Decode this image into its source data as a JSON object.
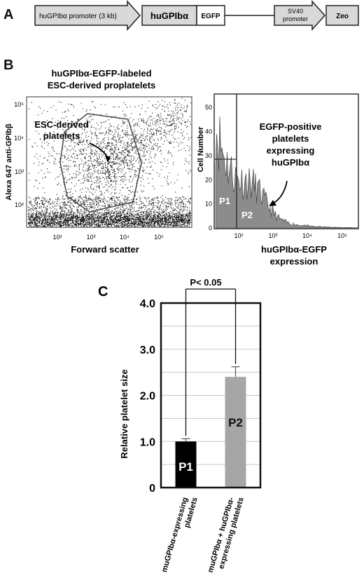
{
  "panels": {
    "a": {
      "letter": "A",
      "construct": {
        "promoter": "huGPIbα promoter (3 kb)",
        "gene": "huGPIbα",
        "tag": "EGFP",
        "sv40": [
          "SV40",
          "promoter"
        ],
        "zeo": "Zeo"
      }
    },
    "b": {
      "letter": "B",
      "title": [
        "huGPIbα-EGFP-labeled",
        "ESC-derived proplatelets"
      ],
      "scatter": {
        "ylabel": "Alexa 647 anti-GPIbβ",
        "xlabel": "Forward scatter",
        "gate_label": [
          "ESC-derived",
          "platelets"
        ],
        "xticks": [
          "10²",
          "10³",
          "10⁴",
          "10⁵"
        ],
        "yticks": [
          "10²",
          "10³",
          "10⁴",
          "10⁵"
        ]
      },
      "histogram": {
        "ylabel": "Cell Number",
        "xlabel": [
          "huGPIbα-EGFP",
          "expression"
        ],
        "annotation": [
          "EGFP-positive",
          "platelets",
          "expressing",
          "huGPIbα"
        ],
        "gates": [
          "P1",
          "P2"
        ],
        "xticks": [
          "10²",
          "10³",
          "10⁴",
          "10⁵"
        ],
        "yticks": [
          "0",
          "10",
          "20",
          "30",
          "40",
          "50"
        ]
      }
    },
    "c": {
      "letter": "C",
      "significance": "P< 0.05",
      "ylabel": "Relative  platelet size",
      "yticks": [
        "0",
        "1.0",
        "2.0",
        "3.0",
        "4.0"
      ],
      "category_labels": [
        [
          "muGPIbα-expressing",
          "platelets"
        ],
        [
          "muGPIbα + huGPIbα-",
          "expressing platelets"
        ]
      ]
    }
  },
  "chart_data": {
    "type": "bar",
    "categories": [
      "muGPIbα-expressing platelets",
      "muGPIbα + huGPIbα-expressing platelets"
    ],
    "values": [
      1.0,
      2.4
    ],
    "errors": [
      0.06,
      0.22
    ],
    "bar_labels": [
      "P1",
      "P2"
    ],
    "colors": [
      "#000000",
      "#a6a6a6"
    ],
    "ylabel": "Relative  platelet size",
    "ylim": [
      0,
      4.0
    ],
    "grid": true,
    "annotation": "P< 0.05"
  }
}
